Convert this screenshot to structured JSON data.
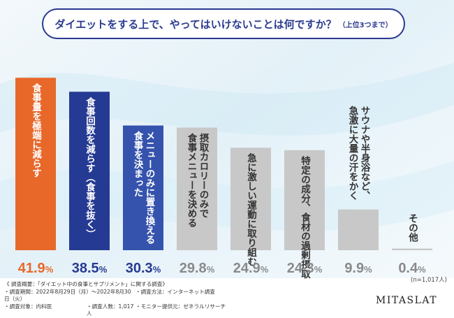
{
  "question": {
    "main": "ダイエットをする上で、やってはいけないことは何ですか？",
    "sub": "（上位3つまで）"
  },
  "chart_data": {
    "type": "bar",
    "categories": [
      "食事量を極端に減らす",
      "食事回数を減らす（食事を抜く）",
      "メニューのみに置き換える|食事を決まった",
      "摂取カロリーのみで|食事メニューを決める",
      "急に激しい運動に取り組む",
      "特定の成分、食材の過剰摂取",
      "サウナや半身浴など、|急激に大量の汗をかく",
      "その他"
    ],
    "values": [
      41.9,
      38.5,
      30.3,
      29.8,
      24.9,
      24.3,
      9.9,
      0.4
    ],
    "value_labels": [
      "41.9%",
      "38.5%",
      "30.3%",
      "29.8%",
      "24.9%",
      "24.3%",
      "9.9%",
      "0.4%"
    ],
    "ylim": [
      0,
      45
    ],
    "sample_note": "(n=1,017人)",
    "colors": {
      "highlight": "#e8682a",
      "second": "#253a92",
      "third": "#3553ad",
      "others": "#c8c8c8",
      "highlight_label": "#e8682a",
      "top_labels": "#253a92",
      "other_labels": "#8a8a8a"
    }
  },
  "survey": {
    "title": "《 調査概要：「ダイエット中の食事とサプリメント」に関する調査》",
    "period": "・調査期間：2022年8月29日（月）～2022年8月30日（火）",
    "method": "・調査方法：インターネット調査",
    "target": "・調査対象：内科医",
    "count": "・調査人数：1,017人",
    "provider": "・モニター提供元：ゼネラルリサーチ"
  },
  "brand": "MITASLAT"
}
